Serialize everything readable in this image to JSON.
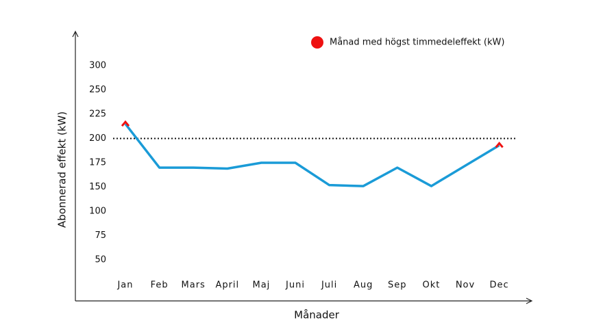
{
  "chart_data": {
    "type": "line",
    "x_label": "Månader",
    "y_label": "Abonnerad effekt (kW)",
    "categories": [
      "Jan",
      "Feb",
      "Mars",
      "April",
      "Maj",
      "Juni",
      "Juli",
      "Aug",
      "Sep",
      "Okt",
      "Nov",
      "Dec"
    ],
    "series": [
      {
        "name": "Abonnerad effekt (kW)",
        "color": "#1a9bd7",
        "values": [
          215,
          170,
          170,
          169,
          175,
          175,
          152,
          151,
          170,
          151,
          172,
          193
        ],
        "show_in_legend": false
      },
      {
        "name": "Månad med högst timmedeleffekt (kW)",
        "color": "#ee1111",
        "values": [
          215,
          null,
          null,
          null,
          null,
          null,
          null,
          null,
          null,
          null,
          null,
          193
        ],
        "markers_only": true
      }
    ],
    "yticks": [
      50,
      75,
      100,
      150,
      175,
      200,
      225,
      250,
      300
    ],
    "reference_line": 200,
    "legend": "top-right"
  }
}
